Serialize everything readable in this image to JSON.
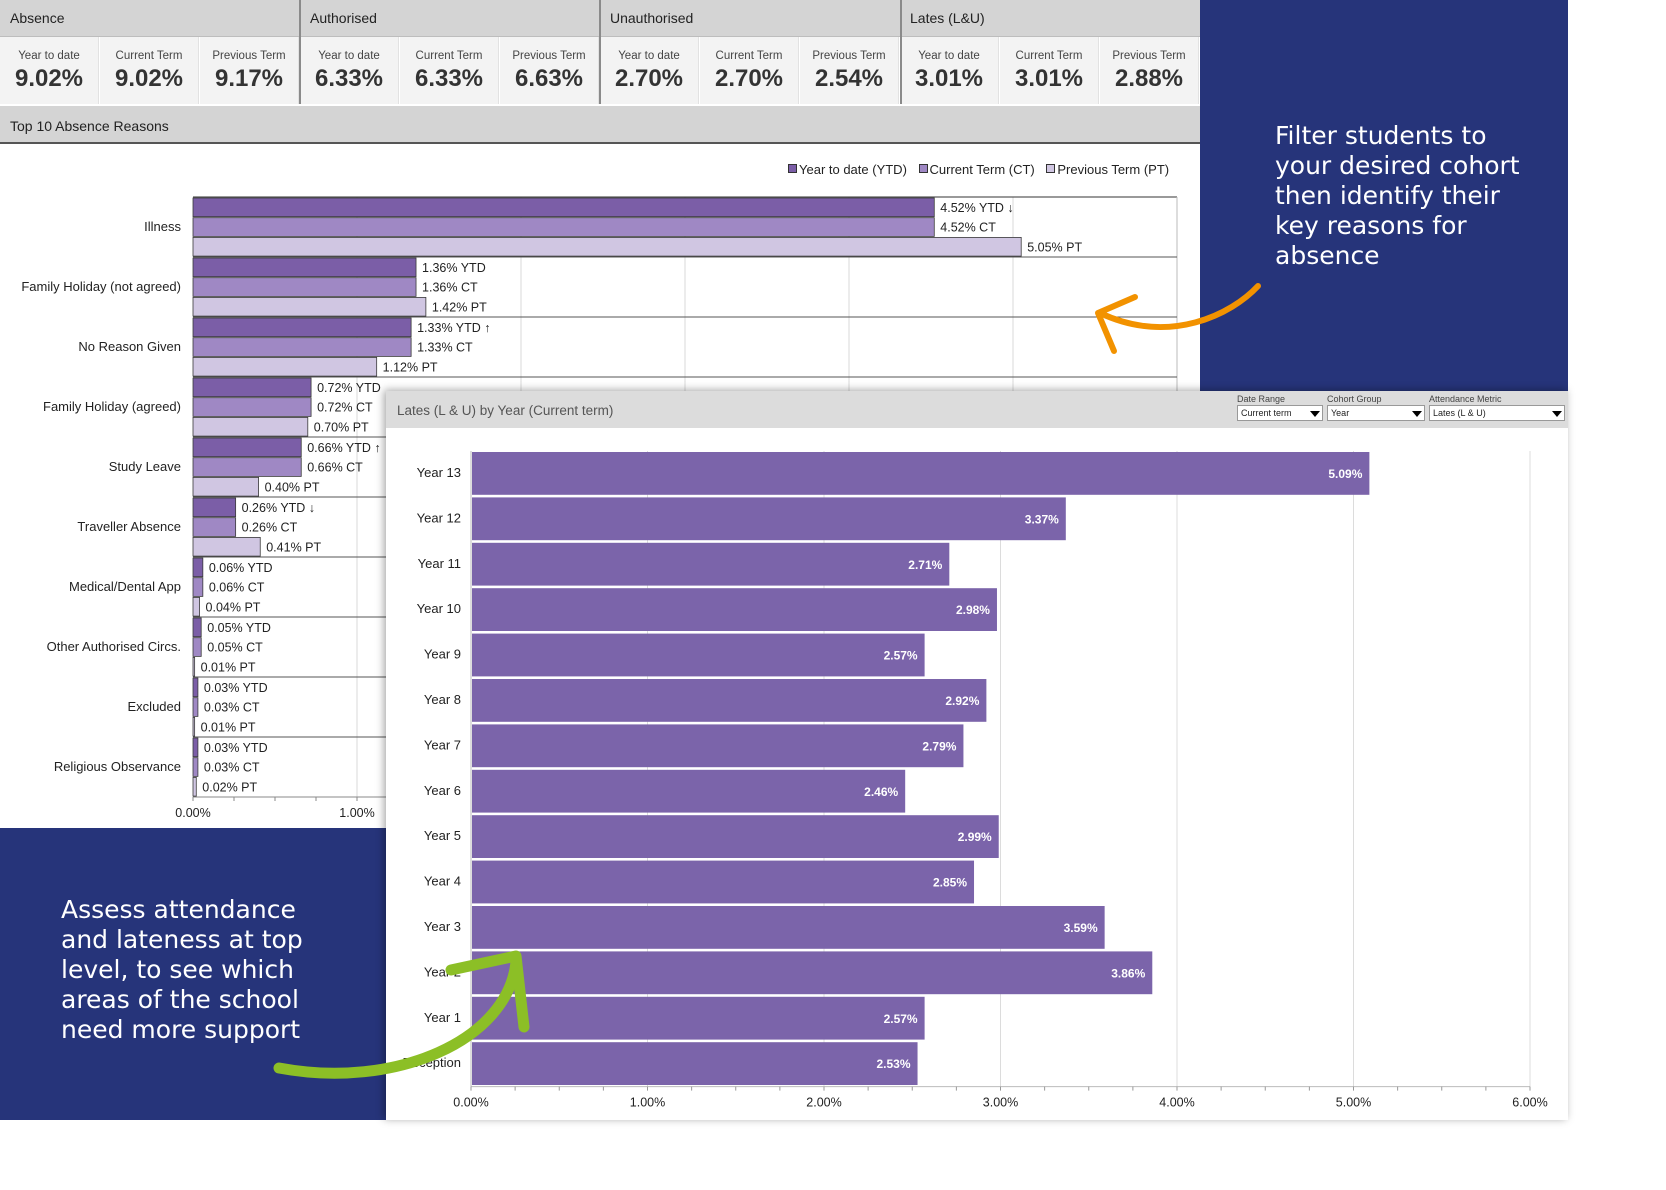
{
  "summary": {
    "groups": [
      {
        "title": "Absence",
        "metrics": [
          {
            "label": "Year to date",
            "value": "9.02%"
          },
          {
            "label": "Current Term",
            "value": "9.02%"
          },
          {
            "label": "Previous Term",
            "value": "9.17%"
          }
        ]
      },
      {
        "title": "Authorised",
        "metrics": [
          {
            "label": "Year to date",
            "value": "6.33%"
          },
          {
            "label": "Current Term",
            "value": "6.33%"
          },
          {
            "label": "Previous Term",
            "value": "6.63%"
          }
        ]
      },
      {
        "title": "Unauthorised",
        "metrics": [
          {
            "label": "Year to date",
            "value": "2.70%"
          },
          {
            "label": "Current Term",
            "value": "2.70%"
          },
          {
            "label": "Previous Term",
            "value": "2.54%"
          }
        ]
      },
      {
        "title": "Lates (L&U)",
        "metrics": [
          {
            "label": "Year to date",
            "value": "3.01%"
          },
          {
            "label": "Current Term",
            "value": "3.01%"
          },
          {
            "label": "Previous Term",
            "value": "2.88%"
          }
        ]
      }
    ]
  },
  "lates_panel": {
    "title": "Lates (L & U) by Year (Current term)",
    "filters": [
      {
        "label": "Date Range",
        "value": "Current term"
      },
      {
        "label": "Cohort Group",
        "value": "Year"
      },
      {
        "label": "Attendance Metric",
        "value": "Lates (L & U)"
      }
    ]
  },
  "callouts": {
    "right": "Filter students to your desired cohort then identify their key reasons for absence",
    "left": "Assess attendance and lateness at top level, to see which areas of the school need more support"
  },
  "colors": {
    "navy": "#26347a",
    "ytd": "#7b5ea7",
    "ct": "#9f88c4",
    "pt": "#d0c6e2",
    "lates_bar": "#7b64aa",
    "arrow_orange": "#f29200",
    "arrow_green": "#8cbf26"
  },
  "chart_data": [
    {
      "type": "bar",
      "title": "Top 10 Absence Reasons",
      "orientation": "horizontal",
      "categories": [
        "Illness",
        "Family Holiday (not agreed)",
        "No Reason Given",
        "Family Holiday (agreed)",
        "Study Leave",
        "Traveller Absence",
        "Medical/Dental App",
        "Other Authorised Circs.",
        "Excluded",
        "Religious Observance"
      ],
      "series": [
        {
          "name": "Year to date (YTD)",
          "short": "YTD",
          "values": [
            4.52,
            1.36,
            1.33,
            0.72,
            0.66,
            0.26,
            0.06,
            0.05,
            0.03,
            0.03
          ]
        },
        {
          "name": "Current Term (CT)",
          "short": "CT",
          "values": [
            4.52,
            1.36,
            1.33,
            0.72,
            0.66,
            0.26,
            0.06,
            0.05,
            0.03,
            0.03
          ]
        },
        {
          "name": "Previous Term (PT)",
          "short": "PT",
          "values": [
            5.05,
            1.42,
            1.12,
            0.7,
            0.4,
            0.41,
            0.04,
            0.01,
            0.01,
            0.02
          ]
        }
      ],
      "trend_markers": [
        "↓",
        "",
        "↑",
        "",
        "↑",
        "↓",
        "",
        "",
        "",
        ""
      ],
      "x_tick_labels": [
        "0.00%",
        "1.00%"
      ],
      "xlim": [
        0,
        6
      ],
      "legend_position": "top-right",
      "grid": true
    },
    {
      "type": "bar",
      "title": "Lates (L & U) by Year (Current term)",
      "orientation": "horizontal",
      "categories": [
        "Year 13",
        "Year 12",
        "Year 11",
        "Year 10",
        "Year 9",
        "Year 8",
        "Year 7",
        "Year 6",
        "Year 5",
        "Year 4",
        "Year 3",
        "Year 2",
        "Year 1",
        "Reception"
      ],
      "values": [
        5.09,
        3.37,
        2.71,
        2.98,
        2.57,
        2.92,
        2.79,
        2.46,
        2.99,
        2.85,
        3.59,
        3.86,
        2.57,
        2.53
      ],
      "x_tick_labels": [
        "0.00%",
        "1.00%",
        "2.00%",
        "3.00%",
        "4.00%",
        "5.00%",
        "6.00%"
      ],
      "xlim": [
        0,
        6
      ],
      "grid": true
    }
  ]
}
